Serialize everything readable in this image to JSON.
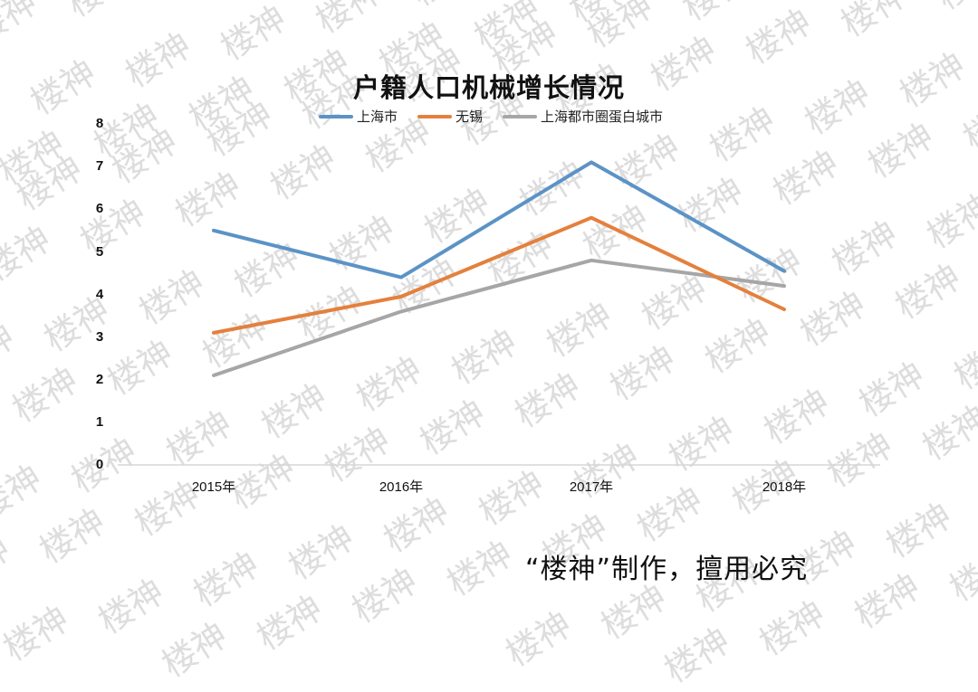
{
  "chart_data": {
    "type": "line",
    "title": "户籍人口机械增长情况",
    "categories": [
      "2015年",
      "2016年",
      "2017年",
      "2018年"
    ],
    "series": [
      {
        "name": "上海市",
        "color": "#5b93c6",
        "values": [
          5.5,
          4.4,
          7.1,
          4.55
        ]
      },
      {
        "name": "无锡",
        "color": "#e4803d",
        "values": [
          3.1,
          3.95,
          5.8,
          3.65
        ]
      },
      {
        "name": "上海都市圈蛋白城市",
        "color": "#a6a6a6",
        "values": [
          2.1,
          3.6,
          4.8,
          4.2
        ]
      }
    ],
    "xlabel": "",
    "ylabel": "",
    "ylim": [
      0,
      8
    ],
    "yticks": [
      "0",
      "1",
      "2",
      "3",
      "4",
      "5",
      "6",
      "7",
      "8"
    ],
    "grid": false,
    "legend_position": "top"
  },
  "credit": "“楼神”制作，擅用必究",
  "watermark_text": "楼神"
}
